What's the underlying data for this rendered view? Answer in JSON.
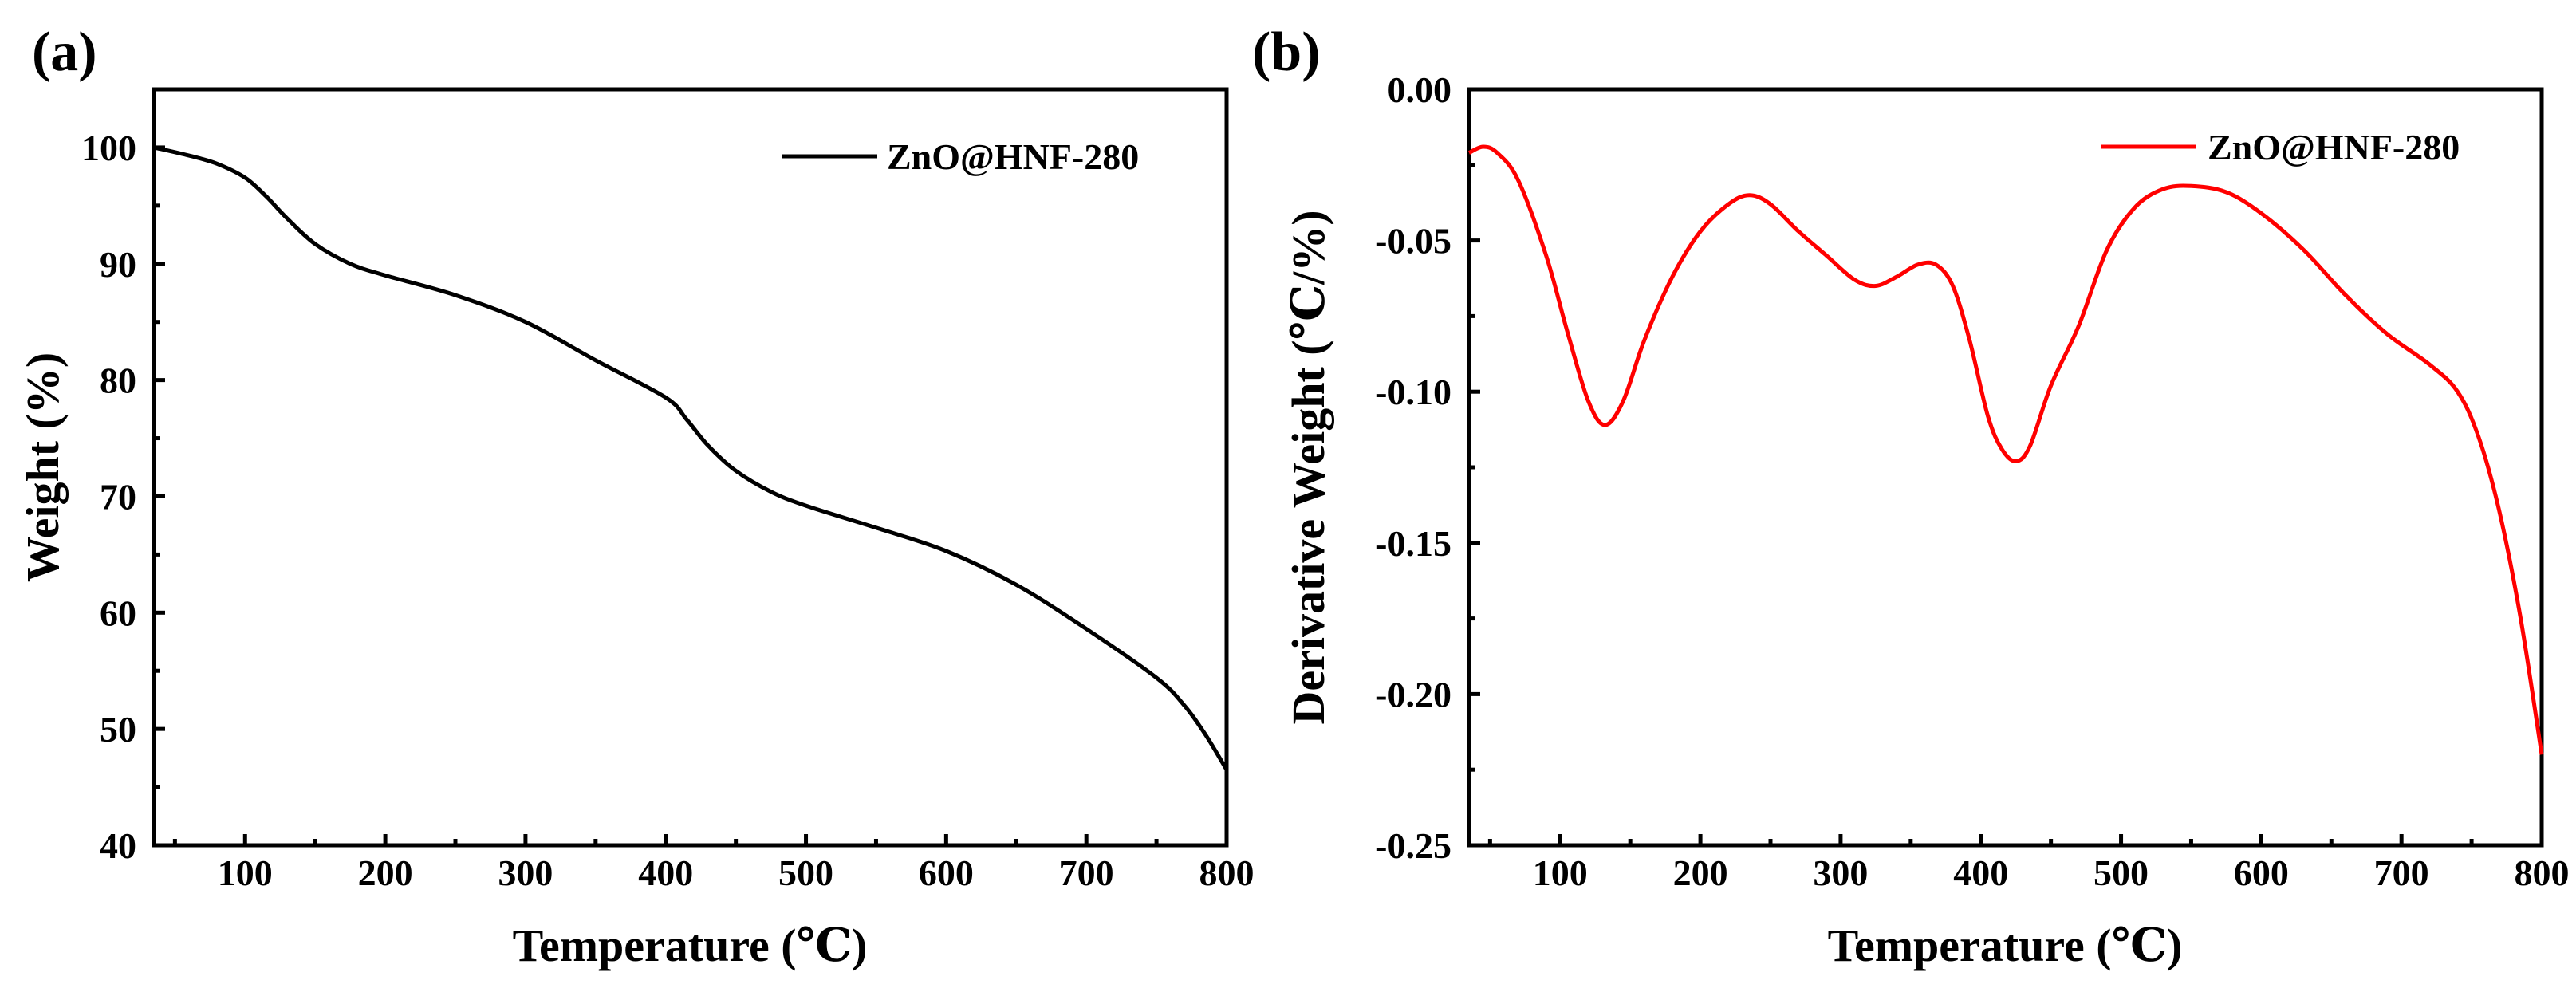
{
  "chart_data": [
    {
      "type": "line",
      "panel_label": "(a)",
      "xlabel": "Temperature (℃)",
      "ylabel": "Weight (%)",
      "xlim": [
        35,
        800
      ],
      "ylim": [
        40,
        105
      ],
      "xticks": [
        100,
        200,
        300,
        400,
        500,
        600,
        700,
        800
      ],
      "yticks": [
        40,
        50,
        60,
        70,
        80,
        90,
        100
      ],
      "grid": false,
      "legend_position": "top-right",
      "series": [
        {
          "name": "ZnO@HNF-280",
          "color": "#000000",
          "x": [
            35,
            60,
            80,
            100,
            115,
            130,
            150,
            175,
            200,
            250,
            300,
            350,
            400,
            415,
            430,
            450,
            475,
            500,
            550,
            600,
            650,
            700,
            750,
            770,
            785,
            800
          ],
          "y": [
            100,
            99.3,
            98.6,
            97.4,
            95.8,
            93.9,
            91.7,
            90.0,
            89.0,
            87.3,
            85.0,
            81.7,
            78.5,
            76.6,
            74.4,
            72.2,
            70.4,
            69.2,
            67.3,
            65.3,
            62.4,
            58.6,
            54.4,
            52.0,
            49.5,
            46.5
          ]
        }
      ]
    },
    {
      "type": "line",
      "panel_label": "(b)",
      "xlabel": "Temperature (℃)",
      "ylabel": "Derivative Weight (℃/%)",
      "xlim": [
        35,
        800
      ],
      "ylim": [
        -0.25,
        0.0
      ],
      "xticks": [
        100,
        200,
        300,
        400,
        500,
        600,
        700,
        800
      ],
      "yticks": [
        0.0,
        -0.05,
        -0.1,
        -0.15,
        -0.2,
        -0.25
      ],
      "ytick_labels": [
        "0.00",
        "-0.05",
        "-0.10",
        "-0.15",
        "-0.20",
        "-0.25"
      ],
      "grid": false,
      "legend_position": "top-right",
      "series": [
        {
          "name": "ZnO@HNF-280",
          "color": "#ff0000",
          "x": [
            35,
            45,
            55,
            70,
            90,
            105,
            120,
            132,
            145,
            160,
            180,
            200,
            220,
            235,
            250,
            270,
            290,
            310,
            325,
            340,
            355,
            368,
            380,
            392,
            405,
            415,
            425,
            435,
            450,
            470,
            490,
            510,
            530,
            550,
            575,
            600,
            630,
            660,
            690,
            720,
            740,
            755,
            770,
            785,
            800
          ],
          "y": [
            -0.021,
            -0.019,
            -0.021,
            -0.03,
            -0.055,
            -0.08,
            -0.103,
            -0.111,
            -0.103,
            -0.083,
            -0.062,
            -0.047,
            -0.038,
            -0.035,
            -0.038,
            -0.047,
            -0.055,
            -0.063,
            -0.065,
            -0.062,
            -0.058,
            -0.058,
            -0.065,
            -0.083,
            -0.108,
            -0.119,
            -0.123,
            -0.118,
            -0.098,
            -0.078,
            -0.053,
            -0.039,
            -0.033,
            -0.032,
            -0.034,
            -0.041,
            -0.053,
            -0.068,
            -0.081,
            -0.091,
            -0.1,
            -0.115,
            -0.14,
            -0.175,
            -0.22
          ]
        }
      ]
    }
  ]
}
